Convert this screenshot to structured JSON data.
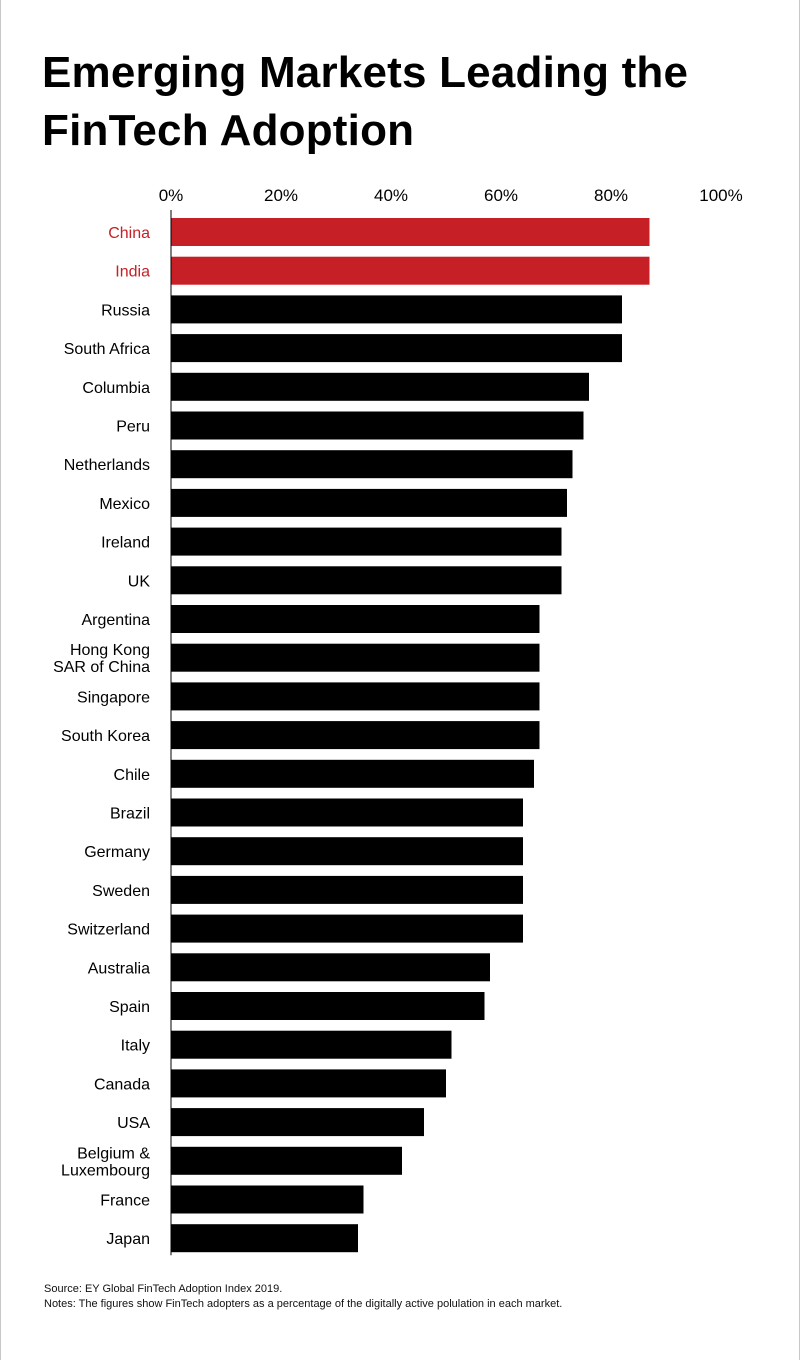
{
  "title": "Emerging Markets Leading the FinTech Adoption",
  "footer": {
    "source": "Source: EY Global FinTech Adoption Index 2019.",
    "notes": "Notes: The figures show FinTech adopters as a percentage of the digitally active polulation in each market."
  },
  "colors": {
    "highlight": "#c62026",
    "bar": "#000000",
    "label": "#000000"
  },
  "chart_data": {
    "type": "bar",
    "orientation": "horizontal",
    "x_axis_position": "top",
    "xlim": [
      0,
      100
    ],
    "x_ticks": [
      "0%",
      "20%",
      "40%",
      "60%",
      "80%",
      "100%"
    ],
    "grid": false,
    "categories": [
      "China",
      "India",
      "Russia",
      "South Africa",
      "Columbia",
      "Peru",
      "Netherlands",
      "Mexico",
      "Ireland",
      "UK",
      "Argentina",
      "Hong Kong\nSAR of China",
      "Singapore",
      "South Korea",
      "Chile",
      "Brazil",
      "Germany",
      "Sweden",
      "Switzerland",
      "Australia",
      "Spain",
      "Italy",
      "Canada",
      "USA",
      "Belgium &\nLuxembourg",
      "France",
      "Japan"
    ],
    "values": [
      87,
      87,
      82,
      82,
      76,
      75,
      73,
      72,
      71,
      71,
      67,
      67,
      67,
      67,
      66,
      64,
      64,
      64,
      64,
      58,
      57,
      51,
      50,
      46,
      42,
      35,
      34
    ],
    "highlighted": [
      "China",
      "India"
    ]
  }
}
